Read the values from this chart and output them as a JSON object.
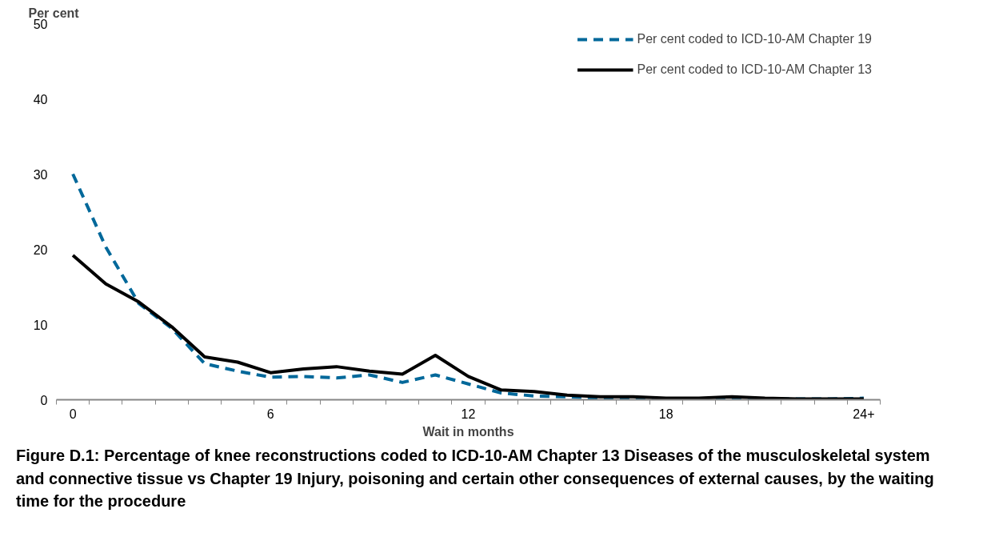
{
  "chart_data": {
    "type": "line",
    "ylabel": "Per cent",
    "xlabel": "Wait in months",
    "categories": [
      "0",
      null,
      null,
      null,
      null,
      null,
      "6",
      null,
      null,
      null,
      null,
      null,
      "12",
      null,
      null,
      null,
      null,
      null,
      "18",
      null,
      null,
      null,
      null,
      null,
      "24+"
    ],
    "series": [
      {
        "name": "Per cent coded to ICD-10-AM Chapter 19",
        "color": "#00689a",
        "line_style": "dashed",
        "values": [
          30,
          20.3,
          12.8,
          9.5,
          4.8,
          3.8,
          3.0,
          3.1,
          2.9,
          3.3,
          2.3,
          3.3,
          2.1,
          0.9,
          0.5,
          0.4,
          0.2,
          0.2,
          0.1,
          0.1,
          0.2,
          0.1,
          0.1,
          0.1,
          0.2
        ]
      },
      {
        "name": "Per cent coded to ICD-10-AM Chapter 13",
        "color": "#000000",
        "line_style": "solid",
        "values": [
          19.2,
          15.4,
          13.0,
          9.7,
          5.7,
          5.0,
          3.6,
          4.1,
          4.4,
          3.8,
          3.4,
          5.9,
          3.1,
          1.3,
          1.1,
          0.6,
          0.4,
          0.4,
          0.2,
          0.2,
          0.4,
          0.2,
          0.1,
          0.1,
          0.1
        ]
      }
    ],
    "ylim": [
      0,
      50
    ],
    "yticks": [
      0,
      10,
      20,
      30,
      40,
      50
    ],
    "grid": false,
    "legend": "top right",
    "marker": "none",
    "annotations": [
      "Figure D.1: Percentage of knee reconstructions coded to ICD-10-AM Chapter 13 Diseases of the musculoskeletal system and connective tissue vs Chapter 19 Injury, poisoning and certain other consequences of external causes, by the waiting time for the procedure"
    ]
  }
}
